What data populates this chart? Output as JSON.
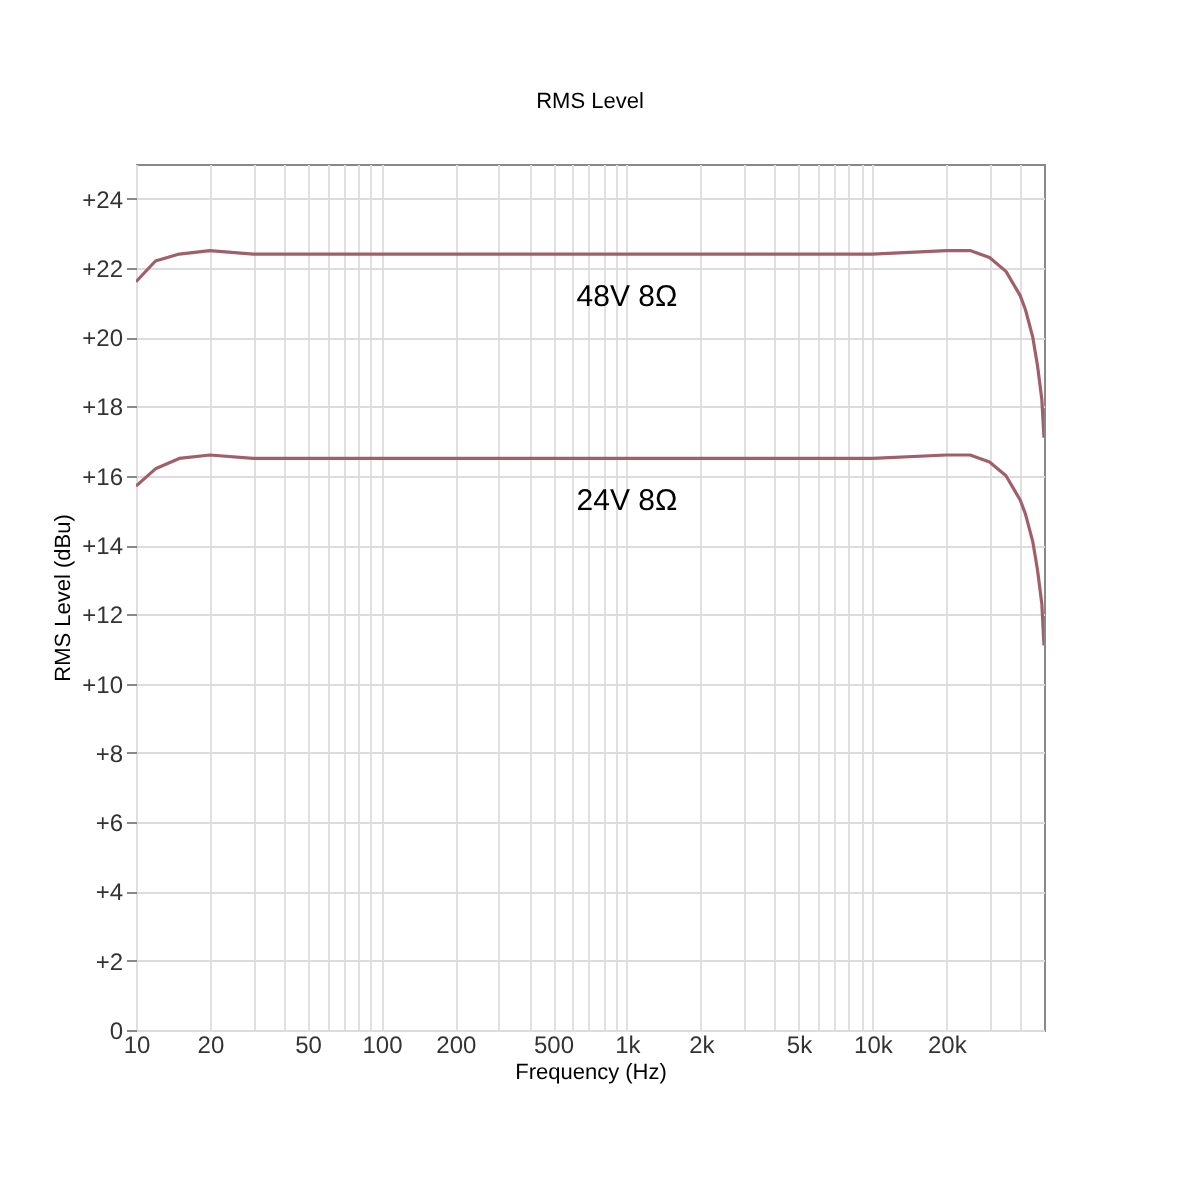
{
  "chart_data": {
    "type": "line",
    "title": "RMS Level",
    "xlabel": "Frequency (Hz)",
    "ylabel": "RMS Level (dBu)",
    "x": [
      10,
      12,
      15,
      20,
      30,
      50,
      100,
      200,
      500,
      1000,
      5000,
      10000,
      20000,
      25000,
      30000,
      35000,
      40000,
      42000,
      45000,
      47000,
      49000,
      50000
    ],
    "series": [
      {
        "name": "48V 8Ω",
        "color": "#a0606a",
        "values": [
          21.6,
          22.2,
          22.4,
          22.5,
          22.4,
          22.4,
          22.4,
          22.4,
          22.4,
          22.4,
          22.4,
          22.4,
          22.5,
          22.5,
          22.3,
          21.9,
          21.2,
          20.8,
          20.0,
          19.2,
          18.2,
          17.1
        ]
      },
      {
        "name": "24V 8Ω",
        "color": "#a0606a",
        "values": [
          15.7,
          16.2,
          16.5,
          16.6,
          16.5,
          16.5,
          16.5,
          16.5,
          16.5,
          16.5,
          16.5,
          16.5,
          16.6,
          16.6,
          16.4,
          16.0,
          15.3,
          14.9,
          14.1,
          13.3,
          12.3,
          11.1
        ]
      }
    ],
    "log": "x",
    "xlim": [
      10,
      50000
    ],
    "ylim": [
      0,
      25
    ],
    "xticks": [
      10,
      20,
      {
        "value": 30,
        "label": null
      },
      {
        "value": 40,
        "label": null
      },
      50,
      {
        "value": 60,
        "label": null
      },
      {
        "value": 70,
        "label": null
      },
      {
        "value": 80,
        "label": null
      },
      {
        "value": 90,
        "label": null
      },
      100,
      200,
      {
        "value": 300,
        "label": null
      },
      {
        "value": 400,
        "label": null
      },
      500,
      {
        "value": 600,
        "label": null
      },
      {
        "value": 700,
        "label": null
      },
      {
        "value": 800,
        "label": null
      },
      {
        "value": 900,
        "label": null
      },
      {
        "value": 1000,
        "label": "1k"
      },
      {
        "value": 2000,
        "label": "2k"
      },
      {
        "value": 3000,
        "label": null
      },
      {
        "value": 4000,
        "label": null
      },
      {
        "value": 5000,
        "label": "5k"
      },
      {
        "value": 6000,
        "label": null
      },
      {
        "value": 7000,
        "label": null
      },
      {
        "value": 8000,
        "label": null
      },
      {
        "value": 9000,
        "label": null
      },
      {
        "value": 10000,
        "label": "10k"
      },
      {
        "value": 20000,
        "label": "20k"
      },
      {
        "value": 30000,
        "label": null
      },
      {
        "value": 40000,
        "label": null
      }
    ],
    "yticks": [
      0,
      {
        "value": 2,
        "label": "+2"
      },
      {
        "value": 4,
        "label": "+4"
      },
      {
        "value": 6,
        "label": "+6"
      },
      {
        "value": 8,
        "label": "+8"
      },
      {
        "value": 10,
        "label": "+10"
      },
      {
        "value": 12,
        "label": "+12"
      },
      {
        "value": 14,
        "label": "+14"
      },
      {
        "value": 16,
        "label": "+16"
      },
      {
        "value": 18,
        "label": "+18"
      },
      {
        "value": 20,
        "label": "+20"
      },
      {
        "value": 22,
        "label": "+22"
      },
      {
        "value": 24,
        "label": "+24"
      }
    ],
    "grid": true
  }
}
